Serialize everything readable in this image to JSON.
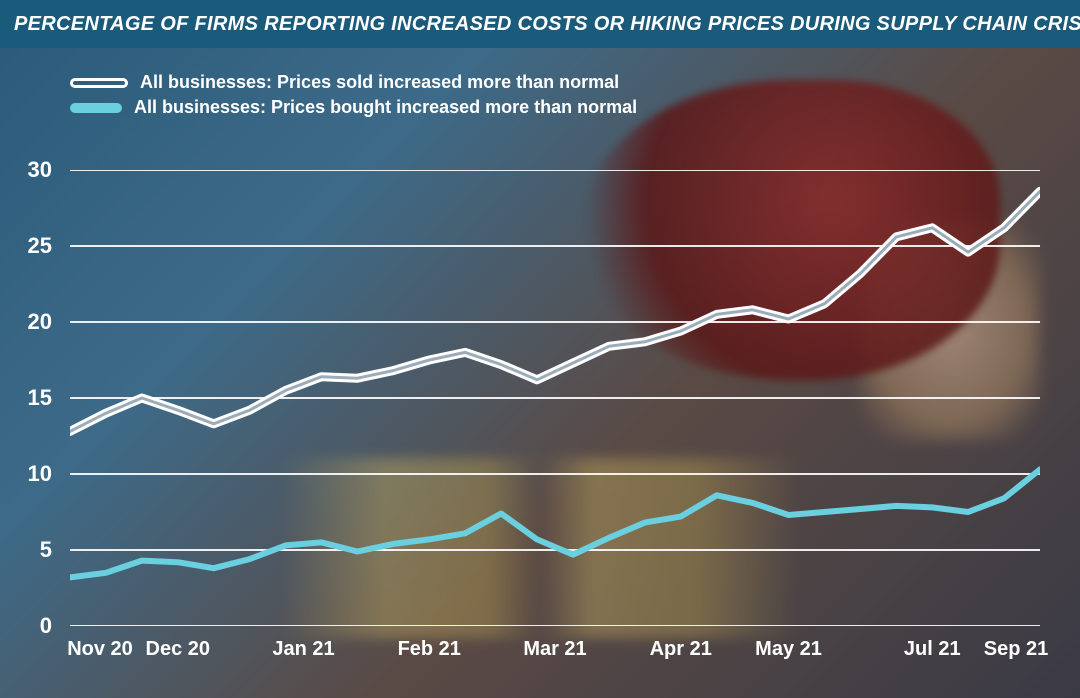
{
  "title": "PERCENTAGE OF FIRMS REPORTING INCREASED COSTS OR HIKING PRICES DURING SUPPLY CHAIN CRISIS",
  "title_bar_color": "#1a5a7a",
  "title_text_color": "#ffffff",
  "title_fontsize": 20,
  "chart": {
    "type": "line",
    "background_gradient": [
      "#2a5a7a",
      "#3d6a88",
      "#5a4a45",
      "#3a3a45"
    ],
    "grid_color": "#ffffff",
    "grid_opacity": 0.9,
    "axis_label_color": "#ffffff",
    "axis_label_fontsize": 22,
    "x_label_fontsize": 20,
    "ylim": [
      0,
      30
    ],
    "ytick_step": 5,
    "yticks": [
      0,
      5,
      10,
      15,
      20,
      25,
      30
    ],
    "x_categories": [
      "Nov 20",
      "Dec 20",
      "Jan 21",
      "Feb 21",
      "Mar 21",
      "Apr 21",
      "May 21",
      "Jul 21",
      "Sep 21"
    ],
    "series": [
      {
        "id": "prices_sold",
        "label": "All businesses: Prices sold increased more than normal",
        "style": "outline",
        "stroke_color": "#ffffff",
        "fill_color": "transparent",
        "line_width": 4,
        "values": [
          12.8,
          14.0,
          15.0,
          14.2,
          13.3,
          14.2,
          15.5,
          16.4,
          16.3,
          16.8,
          17.5,
          18.0,
          17.2,
          16.2,
          17.3,
          18.4,
          18.7,
          19.4,
          20.5,
          20.8,
          20.2,
          21.2,
          23.2,
          25.6,
          26.2,
          24.6,
          26.2,
          28.6
        ]
      },
      {
        "id": "prices_bought",
        "label": "All businesses: Prices bought increased more than normal",
        "style": "solid",
        "stroke_color": "#6acfdf",
        "fill_color": "#6acfdf",
        "line_width": 6,
        "values": [
          3.2,
          3.5,
          4.3,
          4.2,
          3.8,
          4.4,
          5.3,
          5.5,
          4.9,
          5.4,
          5.7,
          6.1,
          7.4,
          5.7,
          4.7,
          5.8,
          6.8,
          7.2,
          8.6,
          8.1,
          7.3,
          7.5,
          7.7,
          7.9,
          7.8,
          7.5,
          8.4,
          10.3
        ]
      }
    ],
    "legend": {
      "position": "top-left",
      "text_color": "#ffffff",
      "fontsize": 18
    }
  }
}
